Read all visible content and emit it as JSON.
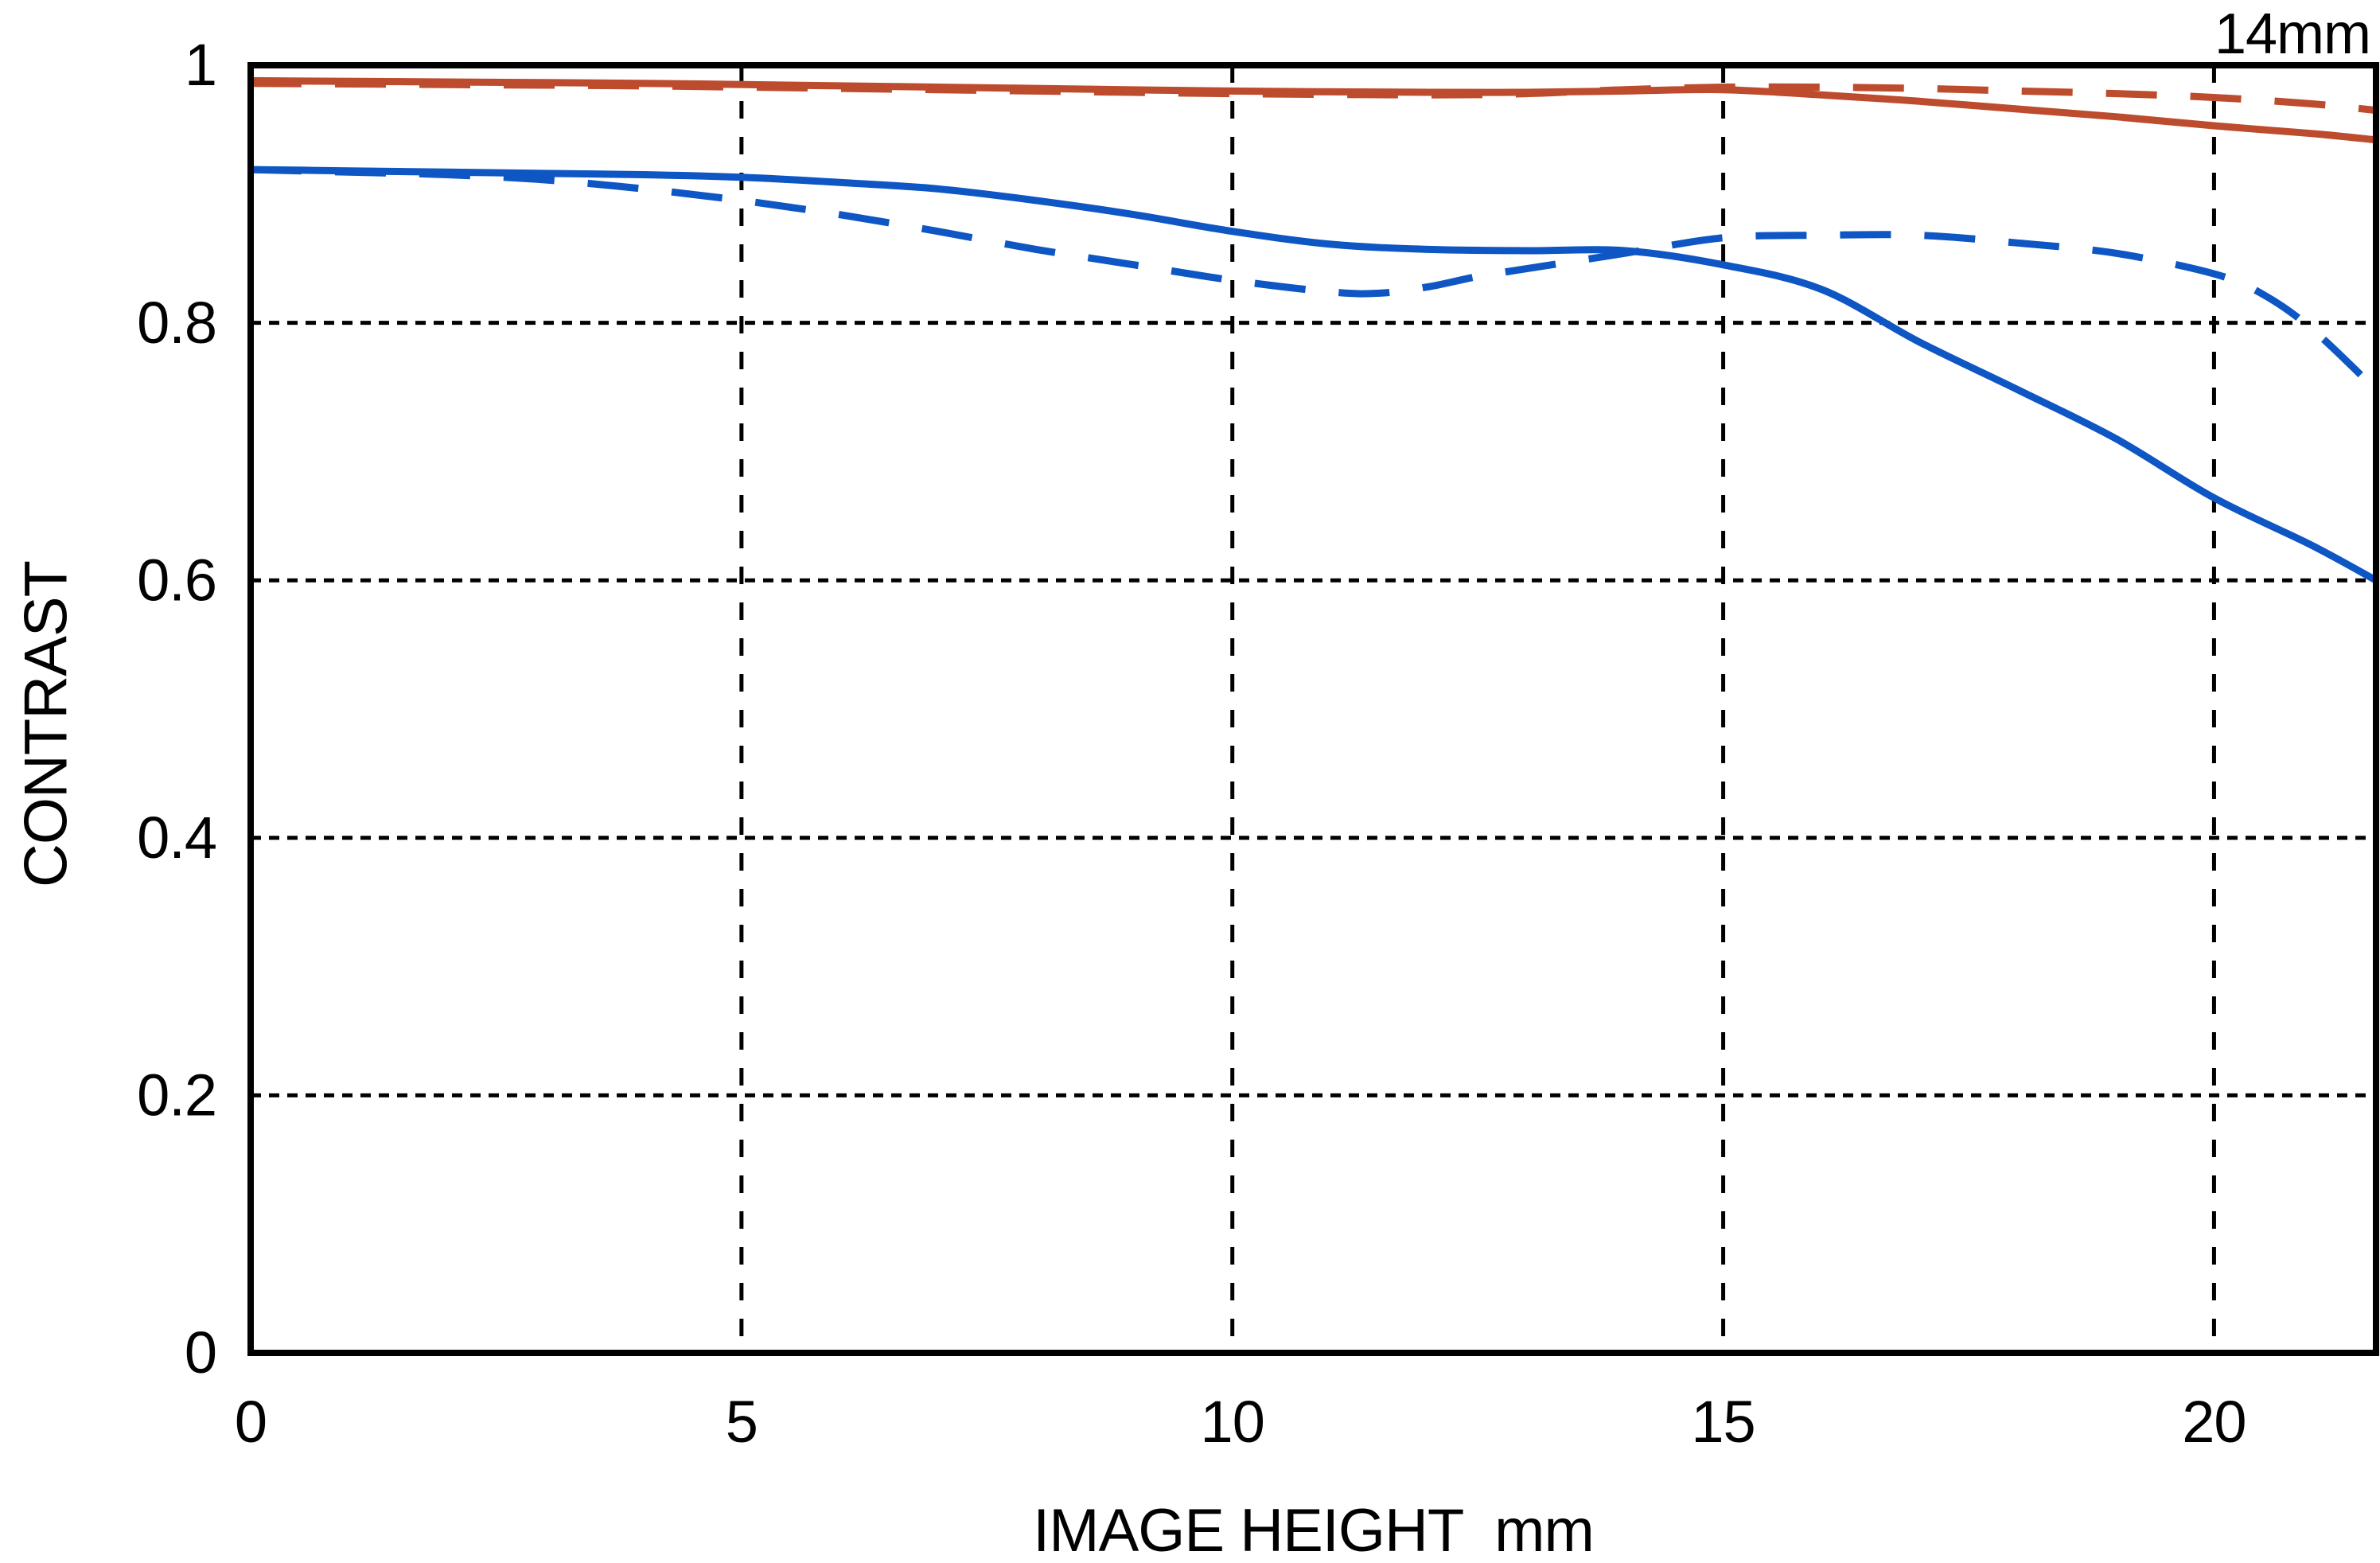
{
  "page": {
    "background": "#ffffff",
    "annotation": "14mm"
  },
  "chart_data": {
    "type": "line",
    "title": "",
    "annotation": "14mm",
    "xlabel": "IMAGE HEIGHT  mm",
    "ylabel": "CONTRAST",
    "xlim": [
      0,
      21.65
    ],
    "ylim": [
      0,
      1
    ],
    "x_ticks": [
      0,
      5,
      10,
      15,
      20
    ],
    "y_ticks": [
      0,
      0.2,
      0.4,
      0.6,
      0.8,
      1
    ],
    "grid": {
      "x_at": [
        5,
        10,
        15,
        20
      ],
      "y_at": [
        0.2,
        0.4,
        0.6,
        0.8
      ],
      "x_style": "dashed",
      "y_style": "dotted",
      "color": "#000000"
    },
    "legend_position": "none",
    "series": [
      {
        "name": "red-solid",
        "color": "#bd4b2d",
        "style": "solid",
        "points": [
          [
            0,
            0.988
          ],
          [
            2,
            0.987
          ],
          [
            4,
            0.986
          ],
          [
            6,
            0.984
          ],
          [
            8,
            0.982
          ],
          [
            10,
            0.98
          ],
          [
            12,
            0.979
          ],
          [
            13,
            0.979
          ],
          [
            14,
            0.98
          ],
          [
            15,
            0.981
          ],
          [
            16,
            0.977
          ],
          [
            17,
            0.972
          ],
          [
            18,
            0.966
          ],
          [
            19,
            0.96
          ],
          [
            20,
            0.953
          ],
          [
            21,
            0.947
          ],
          [
            21.65,
            0.942
          ]
        ]
      },
      {
        "name": "red-dashed",
        "color": "#bd4b2d",
        "style": "dashed",
        "points": [
          [
            0,
            0.986
          ],
          [
            2,
            0.985
          ],
          [
            4,
            0.984
          ],
          [
            6,
            0.982
          ],
          [
            8,
            0.98
          ],
          [
            10,
            0.978
          ],
          [
            12,
            0.977
          ],
          [
            13,
            0.978
          ],
          [
            14,
            0.981
          ],
          [
            15,
            0.983
          ],
          [
            16,
            0.983
          ],
          [
            17,
            0.982
          ],
          [
            18,
            0.98
          ],
          [
            19,
            0.978
          ],
          [
            20,
            0.975
          ],
          [
            21,
            0.97
          ],
          [
            21.65,
            0.965
          ]
        ]
      },
      {
        "name": "blue-solid",
        "color": "#0e56c4",
        "style": "solid",
        "points": [
          [
            0,
            0.919
          ],
          [
            1,
            0.918
          ],
          [
            2,
            0.917
          ],
          [
            3,
            0.916
          ],
          [
            4,
            0.915
          ],
          [
            5,
            0.913
          ],
          [
            6,
            0.909
          ],
          [
            7,
            0.904
          ],
          [
            8,
            0.895
          ],
          [
            9,
            0.884
          ],
          [
            10,
            0.871
          ],
          [
            11,
            0.861
          ],
          [
            12,
            0.857
          ],
          [
            13,
            0.856
          ],
          [
            14,
            0.856
          ],
          [
            15,
            0.845
          ],
          [
            16,
            0.826
          ],
          [
            17,
            0.785
          ],
          [
            18,
            0.748
          ],
          [
            19,
            0.71
          ],
          [
            20,
            0.664
          ],
          [
            21,
            0.627
          ],
          [
            21.65,
            0.6
          ]
        ]
      },
      {
        "name": "blue-dashed",
        "color": "#0e56c4",
        "style": "dashed",
        "points": [
          [
            0,
            0.919
          ],
          [
            1,
            0.917
          ],
          [
            2,
            0.915
          ],
          [
            3,
            0.911
          ],
          [
            4,
            0.904
          ],
          [
            5,
            0.895
          ],
          [
            6,
            0.884
          ],
          [
            7,
            0.871
          ],
          [
            8,
            0.857
          ],
          [
            9,
            0.845
          ],
          [
            10,
            0.833
          ],
          [
            11,
            0.824
          ],
          [
            11.5,
            0.823
          ],
          [
            12,
            0.828
          ],
          [
            12.5,
            0.836
          ],
          [
            13,
            0.842
          ],
          [
            14,
            0.854
          ],
          [
            15,
            0.866
          ],
          [
            16,
            0.868
          ],
          [
            17,
            0.868
          ],
          [
            18,
            0.862
          ],
          [
            19,
            0.854
          ],
          [
            20,
            0.838
          ],
          [
            20.5,
            0.822
          ],
          [
            21,
            0.795
          ],
          [
            21.65,
            0.748
          ]
        ]
      }
    ]
  }
}
